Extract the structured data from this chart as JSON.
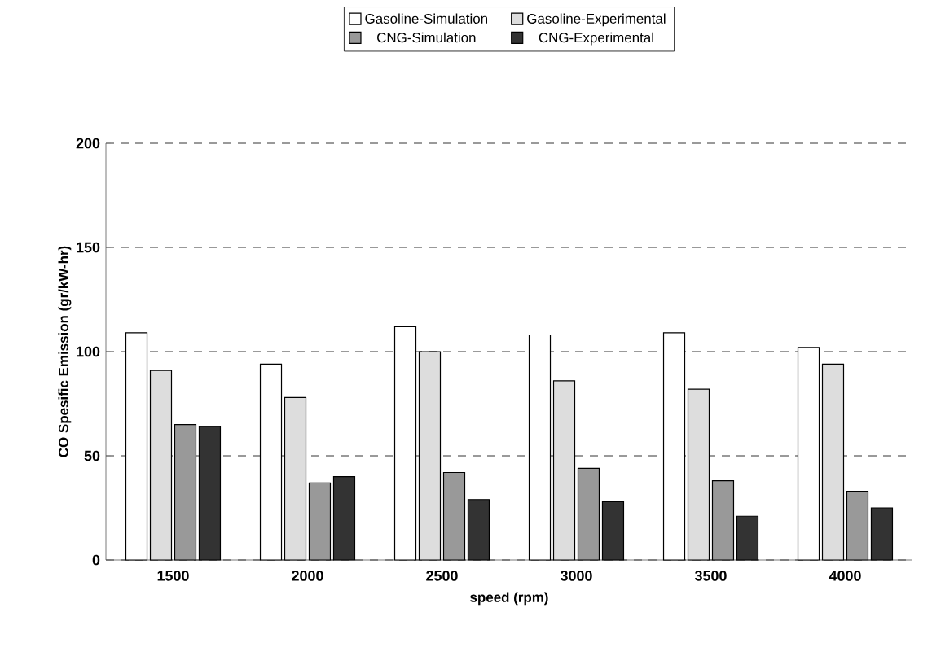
{
  "chart_data": {
    "type": "bar",
    "xlabel": "speed (rpm)",
    "ylabel": "CO Spesific Emission (gr/kW-hr)",
    "categories": [
      "1500",
      "2000",
      "2500",
      "3000",
      "3500",
      "4000"
    ],
    "series": [
      {
        "name": "Gasoline-Simulation",
        "color": "#ffffff",
        "values": [
          109,
          94,
          112,
          108,
          109,
          102
        ]
      },
      {
        "name": "Gasoline-Experimental",
        "color": "#dddddd",
        "values": [
          91,
          78,
          100,
          86,
          82,
          94
        ]
      },
      {
        "name": "CNG-Simulation",
        "color": "#999999",
        "values": [
          65,
          37,
          42,
          44,
          38,
          33
        ]
      },
      {
        "name": "CNG-Experimental",
        "color": "#333333",
        "values": [
          64,
          40,
          29,
          28,
          21,
          25
        ]
      }
    ],
    "ylim": [
      0,
      200
    ],
    "yticks": [
      0,
      50,
      100,
      150,
      200
    ],
    "grid": "y",
    "legend": "top"
  }
}
